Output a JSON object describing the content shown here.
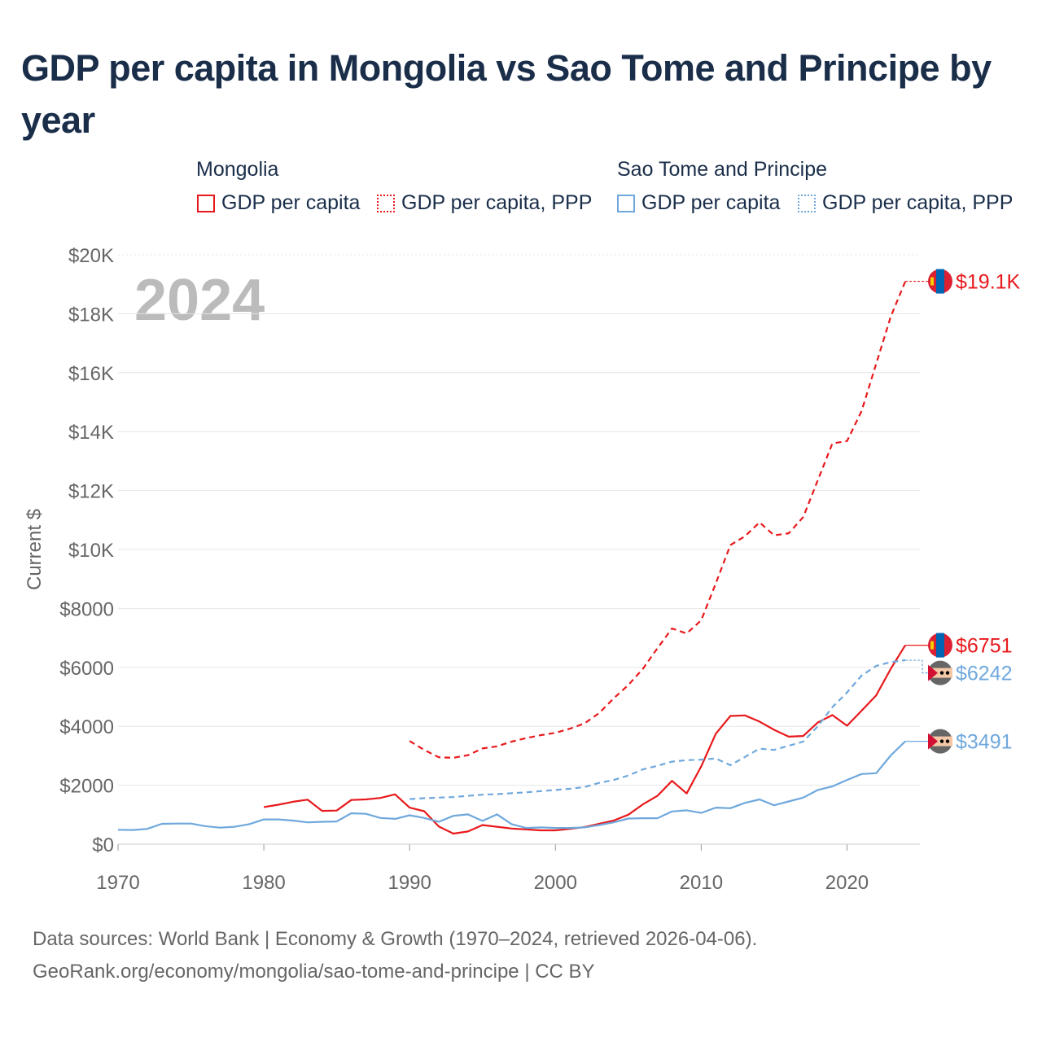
{
  "title": "GDP per capita in Mongolia vs Sao Tome and Principe by year",
  "legend": {
    "groups": [
      {
        "country": "Mongolia",
        "items": [
          "GDP per capita",
          "GDP per capita, PPP"
        ]
      },
      {
        "country": "Sao Tome and Principe",
        "items": [
          "GDP per capita",
          "GDP per capita, PPP"
        ]
      }
    ]
  },
  "colors": {
    "mongolia": "#e8191c",
    "sao_tome": "#6fa8dc",
    "axis_text": "#666666",
    "title": "#1a2e4a",
    "year_watermark": "#bbbbbb"
  },
  "footer": {
    "line1": "Data sources: World Bank | Economy & Growth (1970–2024, retrieved 2026-04-06).",
    "line2": "GeoRank.org/economy/mongolia/sao-tome-and-principe | CC BY"
  },
  "chart_data": {
    "type": "line",
    "title": "GDP per capita in Mongolia vs Sao Tome and Principe by year",
    "ylabel": "Current $",
    "xlabel": "",
    "year_label": "2024",
    "xlim": [
      1970,
      2025
    ],
    "ylim": [
      0,
      20000
    ],
    "x_ticks": [
      1970,
      1980,
      1990,
      2000,
      2010,
      2020
    ],
    "y_ticks": [
      {
        "value": 0,
        "label": "$0"
      },
      {
        "value": 2000,
        "label": "$2000"
      },
      {
        "value": 4000,
        "label": "$4000"
      },
      {
        "value": 6000,
        "label": "$6000"
      },
      {
        "value": 8000,
        "label": "$8000"
      },
      {
        "value": 10000,
        "label": "$10K"
      },
      {
        "value": 12000,
        "label": "$12K"
      },
      {
        "value": 14000,
        "label": "$14K"
      },
      {
        "value": 16000,
        "label": "$16K"
      },
      {
        "value": 18000,
        "label": "$18K"
      },
      {
        "value": 20000,
        "label": "$20K"
      }
    ],
    "grid": true,
    "series": [
      {
        "name": "Mongolia GDP per capita, PPP",
        "country": "mongolia",
        "style": "dashed",
        "end_label": "$19.1K",
        "end_value": 19100,
        "x": [
          1990,
          1991,
          1992,
          1993,
          1994,
          1995,
          1996,
          1997,
          1998,
          1999,
          2000,
          2001,
          2002,
          2003,
          2004,
          2005,
          2006,
          2007,
          2008,
          2009,
          2010,
          2011,
          2012,
          2013,
          2014,
          2015,
          2016,
          2017,
          2018,
          2019,
          2020,
          2021,
          2022,
          2023,
          2024
        ],
        "values": [
          3500,
          3200,
          2950,
          2930,
          3020,
          3250,
          3320,
          3480,
          3600,
          3700,
          3780,
          3920,
          4100,
          4450,
          4950,
          5400,
          5950,
          6650,
          7320,
          7150,
          7600,
          8850,
          10150,
          10450,
          10920,
          10480,
          10550,
          11100,
          12350,
          13600,
          13680,
          14700,
          16300,
          17900,
          19100
        ]
      },
      {
        "name": "Mongolia GDP per capita",
        "country": "mongolia",
        "style": "solid",
        "end_label": "$6751",
        "end_value": 6751,
        "x": [
          1980,
          1981,
          1982,
          1983,
          1984,
          1985,
          1986,
          1987,
          1988,
          1989,
          1990,
          1991,
          1992,
          1993,
          1994,
          1995,
          1996,
          1997,
          1998,
          1999,
          2000,
          2001,
          2002,
          2003,
          2004,
          2005,
          2006,
          2007,
          2008,
          2009,
          2010,
          2011,
          2012,
          2013,
          2014,
          2015,
          2016,
          2017,
          2018,
          2019,
          2020,
          2021,
          2022,
          2023,
          2024
        ],
        "values": [
          1260,
          1340,
          1440,
          1510,
          1130,
          1140,
          1500,
          1520,
          1570,
          1690,
          1240,
          1120,
          600,
          360,
          430,
          650,
          590,
          530,
          500,
          470,
          470,
          520,
          580,
          690,
          800,
          1000,
          1350,
          1640,
          2150,
          1720,
          2640,
          3750,
          4350,
          4370,
          4160,
          3880,
          3650,
          3670,
          4130,
          4380,
          4020,
          4530,
          5050,
          5950,
          6751
        ]
      },
      {
        "name": "Sao Tome and Principe GDP per capita, PPP",
        "country": "sao_tome",
        "style": "dashed",
        "end_label": "$6242",
        "end_value": 6242,
        "x": [
          1990,
          1991,
          1992,
          1993,
          1994,
          1995,
          1996,
          1997,
          1998,
          1999,
          2000,
          2001,
          2002,
          2003,
          2004,
          2005,
          2006,
          2007,
          2008,
          2009,
          2010,
          2011,
          2012,
          2013,
          2014,
          2015,
          2016,
          2017,
          2018,
          2019,
          2020,
          2021,
          2022,
          2023,
          2024
        ],
        "values": [
          1530,
          1560,
          1580,
          1600,
          1640,
          1680,
          1700,
          1730,
          1760,
          1800,
          1840,
          1880,
          1940,
          2080,
          2180,
          2330,
          2540,
          2660,
          2800,
          2850,
          2870,
          2910,
          2680,
          2960,
          3240,
          3200,
          3340,
          3480,
          4000,
          4650,
          5150,
          5720,
          6050,
          6180,
          6242
        ]
      },
      {
        "name": "Sao Tome and Principe GDP per capita",
        "country": "sao_tome",
        "style": "solid",
        "end_label": "$3491",
        "end_value": 3491,
        "x": [
          1970,
          1971,
          1972,
          1973,
          1974,
          1975,
          1976,
          1977,
          1978,
          1979,
          1980,
          1981,
          1982,
          1983,
          1984,
          1985,
          1986,
          1987,
          1988,
          1989,
          1990,
          1991,
          1992,
          1993,
          1994,
          1995,
          1996,
          1997,
          1998,
          1999,
          2000,
          2001,
          2002,
          2003,
          2004,
          2005,
          2006,
          2007,
          2008,
          2009,
          2010,
          2011,
          2012,
          2013,
          2014,
          2015,
          2016,
          2017,
          2018,
          2019,
          2020,
          2021,
          2022,
          2023,
          2024
        ],
        "values": [
          490,
          480,
          520,
          690,
          700,
          700,
          610,
          560,
          590,
          680,
          840,
          840,
          800,
          740,
          760,
          770,
          1050,
          1030,
          890,
          860,
          980,
          890,
          760,
          960,
          1010,
          790,
          1010,
          680,
          550,
          570,
          550,
          550,
          570,
          650,
          740,
          870,
          880,
          880,
          1110,
          1150,
          1060,
          1240,
          1220,
          1400,
          1520,
          1320,
          1450,
          1580,
          1840,
          1960,
          2180,
          2380,
          2410,
          3010,
          3491
        ]
      }
    ]
  }
}
